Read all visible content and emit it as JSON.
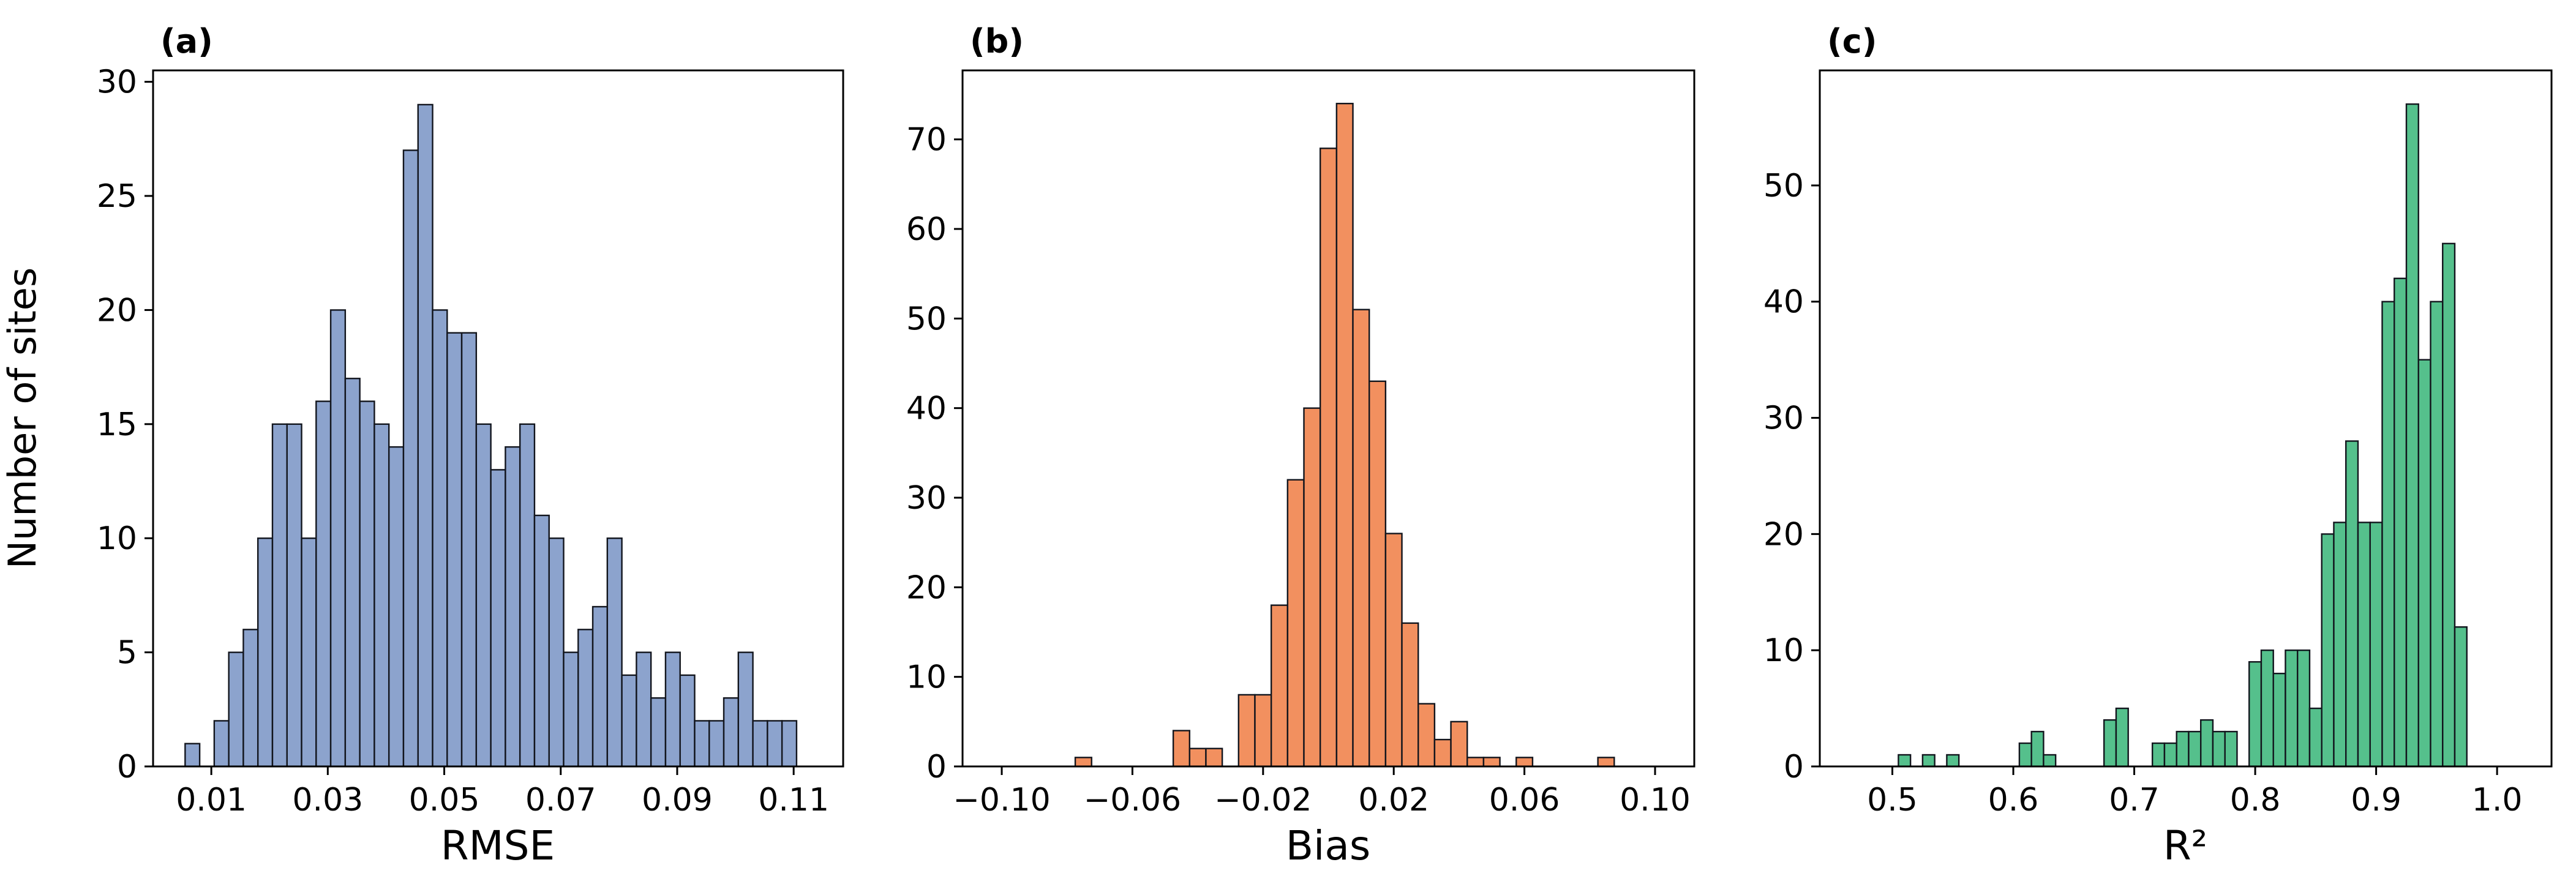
{
  "figure": {
    "background": "#ffffff",
    "panel_labels": [
      "(a)",
      "(b)",
      "(c)"
    ]
  },
  "chart_data": [
    {
      "type": "bar",
      "subtype": "histogram",
      "panel_label": "(a)",
      "xlabel": "RMSE",
      "ylabel": "Number of sites",
      "bar_color": "#8ca3cd",
      "bar_edge_color": "#12151d",
      "bin_start": 0.0055,
      "bin_width": 0.0025,
      "counts": [
        1,
        0,
        2,
        5,
        6,
        10,
        15,
        15,
        10,
        16,
        20,
        17,
        16,
        15,
        14,
        27,
        29,
        20,
        19,
        19,
        15,
        13,
        14,
        15,
        11,
        10,
        5,
        6,
        7,
        10,
        4,
        5,
        3,
        5,
        4,
        2,
        2,
        3,
        5,
        2,
        2,
        2
      ],
      "xlim": [
        0.0,
        0.1185
      ],
      "ylim": [
        0,
        30.5
      ],
      "xticks": [
        0.01,
        0.03,
        0.05,
        0.07,
        0.09,
        0.11
      ],
      "xtick_labels": [
        "0.01",
        "0.03",
        "0.05",
        "0.07",
        "0.09",
        "0.11"
      ],
      "yticks": [
        0,
        5,
        10,
        15,
        20,
        25,
        30
      ],
      "ytick_labels": [
        "0",
        "5",
        "10",
        "15",
        "20",
        "25",
        "30"
      ],
      "grid": false,
      "legend": null
    },
    {
      "type": "bar",
      "subtype": "histogram",
      "panel_label": "(b)",
      "xlabel": "Bias",
      "ylabel": "",
      "bar_color": "#f2905f",
      "bar_edge_color": "#12151d",
      "bin_start": -0.0775,
      "bin_width": 0.005,
      "counts": [
        1,
        0,
        0,
        0,
        0,
        0,
        4,
        2,
        2,
        0,
        8,
        8,
        18,
        32,
        40,
        69,
        74,
        51,
        43,
        26,
        16,
        7,
        3,
        5,
        1,
        1,
        0,
        1,
        0,
        0,
        0,
        0,
        1
      ],
      "xlim": [
        -0.112,
        0.112
      ],
      "ylim": [
        0,
        77.7
      ],
      "xticks": [
        -0.1,
        -0.06,
        -0.02,
        0.02,
        0.06,
        0.1
      ],
      "xtick_labels": [
        "−0.10",
        "−0.06",
        "−0.02",
        "0.02",
        "0.06",
        "0.10"
      ],
      "yticks": [
        0,
        10,
        20,
        30,
        40,
        50,
        60,
        70
      ],
      "ytick_labels": [
        "0",
        "10",
        "20",
        "30",
        "40",
        "50",
        "60",
        "70"
      ],
      "grid": false,
      "legend": null
    },
    {
      "type": "bar",
      "subtype": "histogram",
      "panel_label": "(c)",
      "xlabel": "R²",
      "ylabel": "",
      "bar_color": "#55c08c",
      "bar_edge_color": "#12151d",
      "bin_start": 0.505,
      "bin_width": 0.01,
      "counts": [
        1,
        0,
        1,
        0,
        1,
        0,
        0,
        0,
        0,
        0,
        2,
        3,
        1,
        0,
        0,
        0,
        0,
        4,
        5,
        0,
        0,
        2,
        2,
        3,
        3,
        4,
        3,
        3,
        0,
        9,
        10,
        8,
        10,
        10,
        5,
        20,
        21,
        28,
        21,
        21,
        40,
        42,
        57,
        35,
        40,
        45,
        12
      ],
      "xlim": [
        0.44,
        1.045
      ],
      "ylim": [
        0,
        59.9
      ],
      "xticks": [
        0.5,
        0.6,
        0.7,
        0.8,
        0.9,
        1.0
      ],
      "xtick_labels": [
        "0.5",
        "0.6",
        "0.7",
        "0.8",
        "0.9",
        "1.0"
      ],
      "yticks": [
        0,
        10,
        20,
        30,
        40,
        50
      ],
      "ytick_labels": [
        "0",
        "10",
        "20",
        "30",
        "40",
        "50"
      ],
      "grid": false,
      "legend": null
    }
  ]
}
